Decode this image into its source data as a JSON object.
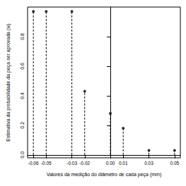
{
  "chart_data": {
    "type": "stem",
    "x_label": "Valores da medição do diâmetro de cada peça (mm)",
    "y_label": "Estimativa da probabilidade da peça ser aprovada (w)",
    "x": [
      -0.06,
      -0.05,
      -0.03,
      -0.02,
      0.0,
      0.01,
      0.03,
      0.05
    ],
    "values": [
      0.97,
      0.97,
      0.97,
      0.43,
      0.28,
      0.18,
      0.03,
      0.03
    ],
    "color": "#000000",
    "line_style": "dashed",
    "marker": "circle",
    "xlim": [
      -0.0645,
      0.0545
    ],
    "ylim": [
      -0.02,
      1.0
    ],
    "xticks": [
      -0.06,
      -0.05,
      -0.03,
      -0.02,
      {
        "value": 0,
        "label": "0.00"
      },
      0.01,
      0.03,
      0.05
    ],
    "yticks": [
      {
        "value": 0,
        "label": "0.0"
      },
      0.2,
      0.4,
      0.6,
      0.8
    ],
    "grid": false
  }
}
